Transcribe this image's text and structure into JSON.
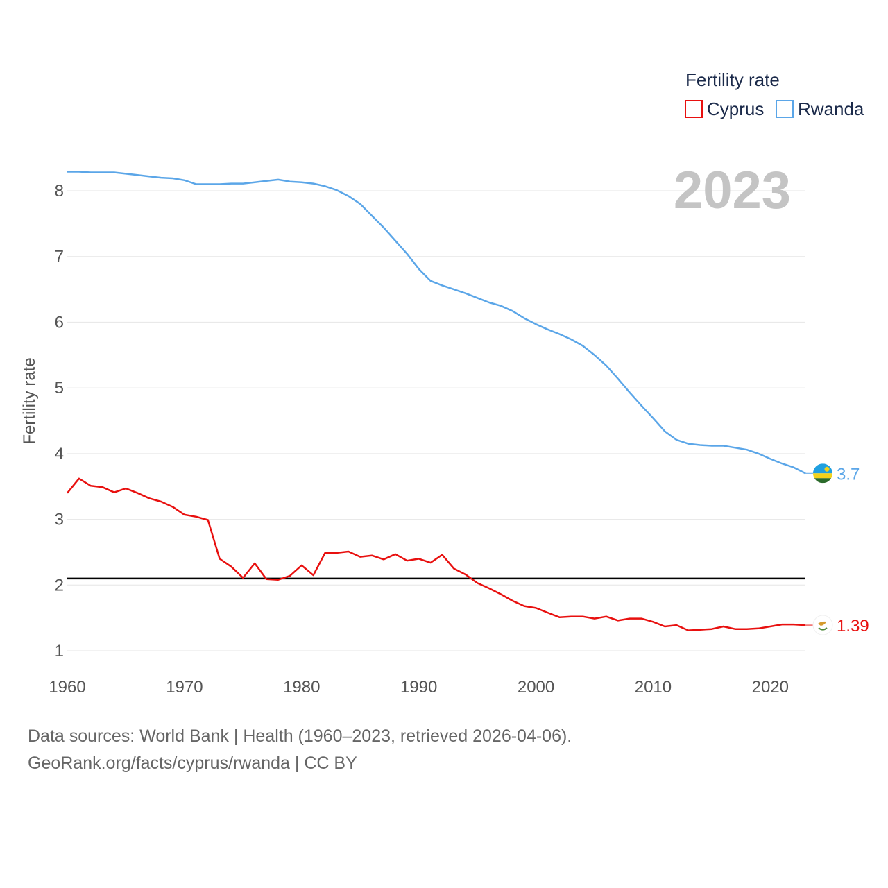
{
  "chart_data": {
    "type": "line",
    "title": "",
    "ylabel": "Fertility rate",
    "xlabel": "",
    "xlim": [
      1960,
      2023
    ],
    "ylim": [
      0.6,
      8.8
    ],
    "x_ticks": [
      1960,
      1970,
      1980,
      1990,
      2000,
      2010,
      2020
    ],
    "y_ticks": [
      1,
      2,
      3,
      4,
      5,
      6,
      7,
      8
    ],
    "grid": true,
    "year_label": "2023",
    "legend": {
      "title": "Fertility rate",
      "position": "top-right"
    },
    "reference_line": {
      "y": 2.1,
      "color": "#000000"
    },
    "x": [
      1960,
      1961,
      1962,
      1963,
      1964,
      1965,
      1966,
      1967,
      1968,
      1969,
      1970,
      1971,
      1972,
      1973,
      1974,
      1975,
      1976,
      1977,
      1978,
      1979,
      1980,
      1981,
      1982,
      1983,
      1984,
      1985,
      1986,
      1987,
      1988,
      1989,
      1990,
      1991,
      1992,
      1993,
      1994,
      1995,
      1996,
      1997,
      1998,
      1999,
      2000,
      2001,
      2002,
      2003,
      2004,
      2005,
      2006,
      2007,
      2008,
      2009,
      2010,
      2011,
      2012,
      2013,
      2014,
      2015,
      2016,
      2017,
      2018,
      2019,
      2020,
      2021,
      2022,
      2023
    ],
    "series": [
      {
        "name": "Cyprus",
        "color": "#e8100f",
        "end_label": "1.39",
        "flag_icon": "cyprus-flag-icon",
        "values": [
          3.4,
          3.62,
          3.51,
          3.49,
          3.41,
          3.47,
          3.4,
          3.32,
          3.27,
          3.19,
          3.07,
          3.04,
          2.99,
          2.4,
          2.28,
          2.11,
          2.33,
          2.09,
          2.08,
          2.14,
          2.3,
          2.15,
          2.49,
          2.49,
          2.51,
          2.43,
          2.45,
          2.39,
          2.47,
          2.37,
          2.4,
          2.34,
          2.46,
          2.25,
          2.16,
          2.03,
          1.95,
          1.86,
          1.76,
          1.68,
          1.65,
          1.58,
          1.51,
          1.52,
          1.52,
          1.49,
          1.52,
          1.46,
          1.49,
          1.49,
          1.44,
          1.37,
          1.39,
          1.31,
          1.32,
          1.33,
          1.37,
          1.33,
          1.33,
          1.34,
          1.37,
          1.4,
          1.4,
          1.39
        ]
      },
      {
        "name": "Rwanda",
        "color": "#5ba6e8",
        "end_label": "3.7",
        "flag_icon": "rwanda-flag-icon",
        "values": [
          8.29,
          8.29,
          8.28,
          8.28,
          8.28,
          8.26,
          8.24,
          8.22,
          8.2,
          8.19,
          8.16,
          8.1,
          8.1,
          8.1,
          8.11,
          8.11,
          8.13,
          8.15,
          8.17,
          8.14,
          8.13,
          8.11,
          8.07,
          8.01,
          7.92,
          7.8,
          7.62,
          7.44,
          7.24,
          7.04,
          6.81,
          6.63,
          6.56,
          6.5,
          6.44,
          6.37,
          6.3,
          6.25,
          6.17,
          6.06,
          5.97,
          5.89,
          5.82,
          5.74,
          5.64,
          5.5,
          5.34,
          5.14,
          4.93,
          4.73,
          4.54,
          4.34,
          4.21,
          4.15,
          4.13,
          4.12,
          4.12,
          4.09,
          4.06,
          4.0,
          3.92,
          3.85,
          3.79,
          3.7
        ]
      }
    ]
  },
  "footer": {
    "sources_line": "Data sources: World Bank | Health (1960–2023, retrieved 2026-04-06).",
    "credit_line": "GeoRank.org/facts/cyprus/rwanda | CC BY"
  }
}
